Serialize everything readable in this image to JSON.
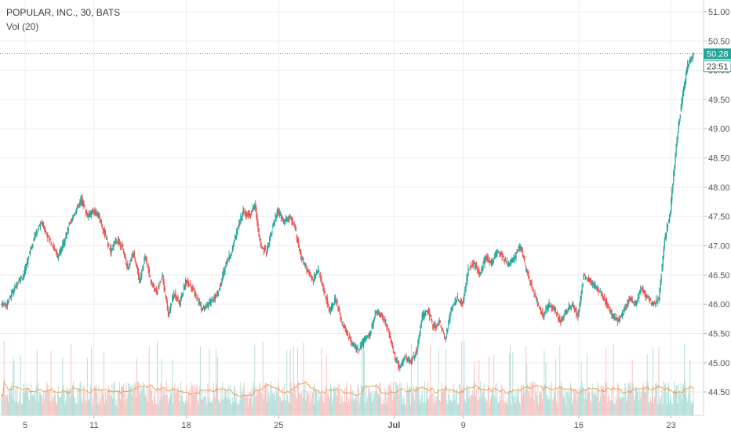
{
  "chart_data": {
    "type": "candlestick",
    "title": "POPULAR, INC., 30, BATS",
    "indicator_label": "Vol (20)",
    "y_ticks": [
      "51.00",
      "50.50",
      "50.00",
      "49.50",
      "49.00",
      "48.50",
      "48.00",
      "47.50",
      "47.00",
      "46.50",
      "46.00",
      "45.50",
      "45.00",
      "44.50"
    ],
    "y_tick_values": [
      51.0,
      50.5,
      50.0,
      49.5,
      49.0,
      48.5,
      48.0,
      47.5,
      47.0,
      46.5,
      46.0,
      45.5,
      45.0,
      44.5
    ],
    "ylim": [
      44.1,
      51.2
    ],
    "x_ticks": [
      "5",
      "11",
      "18",
      "25",
      "Jul",
      "9",
      "16",
      "23"
    ],
    "last_price": 50.28,
    "last_price_label": "50.28",
    "countdown_label": "23:51",
    "grid": true,
    "colors": {
      "up": "#26a69a",
      "down": "#ef5350",
      "vol_up": "#b2dfdb",
      "vol_down": "#f8c4c2",
      "ma": "#f0a25a",
      "price_line": "#26a69a",
      "grid": "#ececec"
    },
    "sessions": [
      {
        "x_tick": "",
        "closes": [
          46.0,
          46.2,
          46.4,
          46.5
        ]
      },
      {
        "x_tick": "",
        "closes": [
          46.9,
          47.2,
          47.4,
          47.2
        ]
      },
      {
        "x_tick": "",
        "closes": [
          47.0,
          46.8,
          47.1,
          47.4
        ]
      },
      {
        "x_tick": "",
        "closes": [
          47.6,
          47.8,
          47.5,
          47.6
        ]
      },
      {
        "x_tick": "11",
        "closes": [
          47.5,
          47.2,
          46.9,
          47.1
        ]
      },
      {
        "x_tick": "",
        "closes": [
          47.0,
          46.6,
          46.9,
          46.4
        ]
      },
      {
        "x_tick": "",
        "closes": [
          46.8,
          46.4,
          46.2,
          46.5
        ]
      },
      {
        "x_tick": "",
        "closes": [
          45.8,
          46.2,
          46.0,
          46.4
        ]
      },
      {
        "x_tick": "18",
        "closes": [
          46.3,
          46.1,
          45.9,
          46.0
        ]
      },
      {
        "x_tick": "",
        "closes": [
          46.1,
          46.3,
          46.7,
          46.9
        ]
      },
      {
        "x_tick": "",
        "closes": [
          47.3,
          47.6,
          47.5,
          47.7
        ]
      },
      {
        "x_tick": "",
        "closes": [
          47.0,
          46.9,
          47.3,
          47.6
        ]
      },
      {
        "x_tick": "25",
        "closes": [
          47.4,
          47.5,
          47.3,
          46.8
        ]
      },
      {
        "x_tick": "",
        "closes": [
          46.6,
          46.4,
          46.6,
          46.2
        ]
      },
      {
        "x_tick": "",
        "closes": [
          45.9,
          46.1,
          45.7,
          45.5
        ]
      },
      {
        "x_tick": "",
        "closes": [
          45.3,
          45.2,
          45.4,
          45.5
        ]
      },
      {
        "x_tick": "",
        "closes": [
          45.9,
          45.8,
          45.6,
          45.2
        ]
      },
      {
        "x_tick": "Jul",
        "closes": [
          44.9,
          45.1,
          45.0,
          45.2
        ]
      },
      {
        "x_tick": "",
        "closes": [
          45.8,
          45.9,
          45.6,
          45.7
        ]
      },
      {
        "x_tick": "",
        "closes": [
          45.4,
          45.9,
          46.1,
          46.0
        ]
      },
      {
        "x_tick": "9",
        "closes": [
          46.6,
          46.7,
          46.5,
          46.8
        ]
      },
      {
        "x_tick": "",
        "closes": [
          46.7,
          46.9,
          46.8,
          46.7
        ]
      },
      {
        "x_tick": "",
        "closes": [
          46.8,
          47.0,
          46.6,
          46.3
        ]
      },
      {
        "x_tick": "",
        "closes": [
          46.0,
          45.8,
          46.0,
          45.9
        ]
      },
      {
        "x_tick": "",
        "closes": [
          45.7,
          45.9,
          46.0,
          45.8
        ]
      },
      {
        "x_tick": "16",
        "closes": [
          46.5,
          46.4,
          46.3,
          46.2
        ]
      },
      {
        "x_tick": "",
        "closes": [
          46.0,
          45.8,
          45.7,
          45.9
        ]
      },
      {
        "x_tick": "",
        "closes": [
          46.1,
          46.0,
          46.3,
          46.1
        ]
      },
      {
        "x_tick": "",
        "closes": [
          46.0,
          46.1,
          47.1,
          47.6
        ]
      },
      {
        "x_tick": "23",
        "closes": [
          48.7,
          49.5,
          50.1,
          50.28
        ]
      }
    ]
  }
}
